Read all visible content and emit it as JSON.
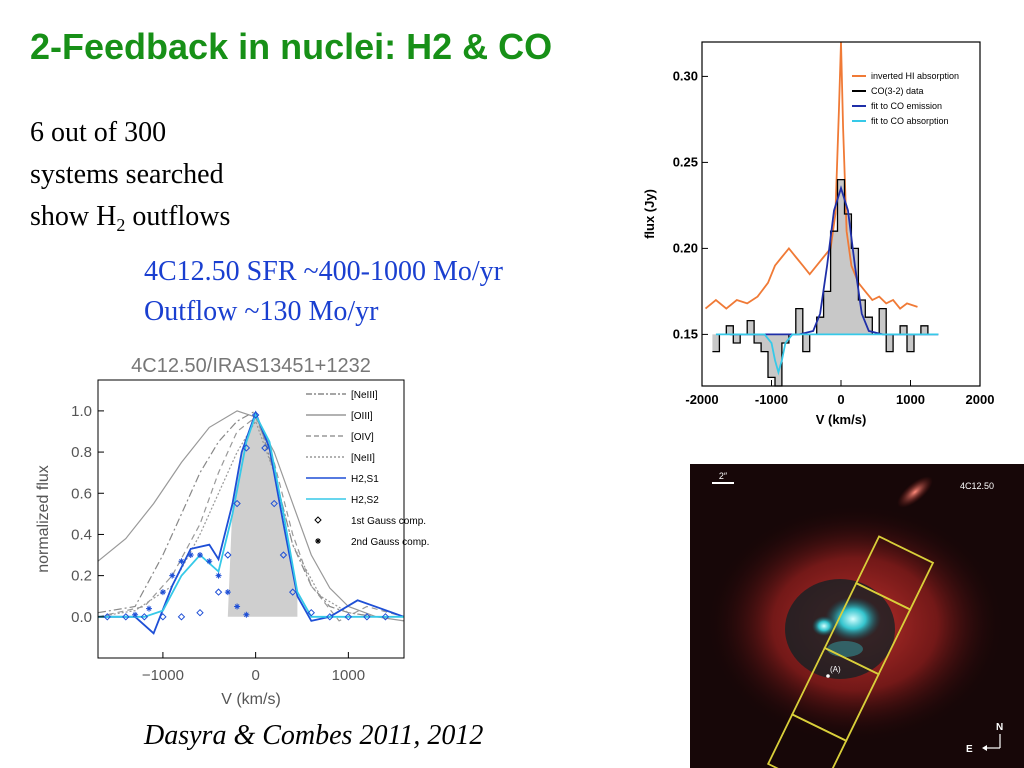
{
  "slide": {
    "title": "2-Feedback in nuclei: H2 & CO",
    "intro_line1": "6 out of 300",
    "intro_line2": "systems searched",
    "intro_line3_a": "show H",
    "intro_line3_sub": "2",
    "intro_line3_b": " outflows",
    "stats_line1": "4C12.50  SFR ~400-1000 Mo/yr",
    "stats_line2": "Outflow ~130 Mo/yr",
    "citation": "Dasyra & Combes 2011, 2012"
  },
  "chart_data": [
    {
      "type": "line",
      "xlabel": "V (km/s)",
      "ylabel": "flux (Jy)",
      "xlim": [
        -2000,
        2000
      ],
      "ylim": [
        0.12,
        0.32
      ],
      "x_ticks": [
        "-2000",
        "-1000",
        "0",
        "1000",
        "2000"
      ],
      "y_ticks": [
        "0.15",
        "0.20",
        "0.25",
        "0.30"
      ],
      "legend_position": "top-right",
      "series": [
        {
          "name": "inverted HI absorption",
          "color": "#f07a36",
          "x": [
            -1950,
            -1800,
            -1650,
            -1500,
            -1350,
            -1200,
            -1050,
            -950,
            -850,
            -750,
            -650,
            -550,
            -450,
            -350,
            -250,
            -150,
            -80,
            -30,
            0,
            30,
            80,
            150,
            250,
            350,
            450,
            550,
            650,
            750,
            850,
            950,
            1100
          ],
          "y": [
            0.165,
            0.17,
            0.165,
            0.17,
            0.168,
            0.172,
            0.18,
            0.19,
            0.195,
            0.2,
            0.195,
            0.19,
            0.185,
            0.19,
            0.195,
            0.2,
            0.22,
            0.28,
            0.32,
            0.27,
            0.21,
            0.19,
            0.18,
            0.175,
            0.17,
            0.172,
            0.168,
            0.17,
            0.165,
            0.168,
            0.166
          ]
        },
        {
          "name": "CO(3-2) data",
          "color": "#000000",
          "x": [
            -1800,
            -1700,
            -1600,
            -1500,
            -1400,
            -1300,
            -1200,
            -1100,
            -1000,
            -900,
            -800,
            -700,
            -600,
            -500,
            -400,
            -300,
            -200,
            -100,
            0,
            100,
            200,
            300,
            400,
            500,
            600,
            700,
            800,
            900,
            1000,
            1100,
            1200,
            1300
          ],
          "y": [
            0.14,
            0.15,
            0.155,
            0.145,
            0.15,
            0.158,
            0.145,
            0.14,
            0.125,
            0.12,
            0.145,
            0.15,
            0.165,
            0.14,
            0.15,
            0.16,
            0.175,
            0.21,
            0.24,
            0.22,
            0.2,
            0.17,
            0.16,
            0.15,
            0.165,
            0.14,
            0.15,
            0.155,
            0.14,
            0.15,
            0.155,
            0.15
          ]
        },
        {
          "name": "fit to CO emission",
          "color": "#1f2fa8",
          "x": [
            -1600,
            -600,
            -400,
            -300,
            -200,
            -100,
            0,
            100,
            200,
            300,
            400,
            600,
            1400
          ],
          "y": [
            0.15,
            0.15,
            0.152,
            0.162,
            0.19,
            0.222,
            0.235,
            0.222,
            0.19,
            0.162,
            0.152,
            0.15,
            0.15
          ]
        },
        {
          "name": "fit to CO absorption",
          "color": "#36c9e8",
          "x": [
            -1800,
            -1100,
            -1000,
            -950,
            -900,
            -850,
            -800,
            -700,
            1400
          ],
          "y": [
            0.15,
            0.15,
            0.145,
            0.135,
            0.128,
            0.135,
            0.145,
            0.15,
            0.15
          ]
        }
      ]
    },
    {
      "type": "line",
      "title": "4C12.50/IRAS13451+1232",
      "xlabel": "V (km/s)",
      "ylabel": "normalized flux",
      "xlim": [
        -1700,
        1600
      ],
      "ylim": [
        -0.2,
        1.15
      ],
      "x_ticks": [
        "−1000",
        "0",
        "1000"
      ],
      "y_ticks": [
        "0.0",
        "0.2",
        "0.4",
        "0.6",
        "0.8",
        "1.0"
      ],
      "legend_position": "top-right",
      "series": [
        {
          "name": "[NeIII]",
          "color": "#888888",
          "style": "dash-dot",
          "x": [
            -1700,
            -1300,
            -1000,
            -800,
            -600,
            -400,
            -200,
            0,
            200,
            400,
            600,
            800,
            1000,
            1300,
            1600
          ],
          "y": [
            0.02,
            0.05,
            0.3,
            0.5,
            0.7,
            0.85,
            0.95,
            1.0,
            0.7,
            0.35,
            0.15,
            0.05,
            0.02,
            0.0,
            0.0
          ]
        },
        {
          "name": "[OIII]",
          "color": "#999999",
          "style": "solid",
          "x": [
            -1700,
            -1400,
            -1100,
            -800,
            -500,
            -200,
            0,
            200,
            400,
            600,
            800,
            1000,
            1300,
            1600
          ],
          "y": [
            0.27,
            0.38,
            0.55,
            0.75,
            0.92,
            1.0,
            0.97,
            0.8,
            0.55,
            0.3,
            0.14,
            0.05,
            0.0,
            -0.02
          ]
        },
        {
          "name": "[OIV]",
          "color": "#999999",
          "style": "dashed",
          "x": [
            -1700,
            -1200,
            -900,
            -600,
            -400,
            -200,
            0,
            200,
            400,
            600,
            900,
            1200,
            1600
          ],
          "y": [
            0.0,
            0.05,
            0.2,
            0.45,
            0.7,
            0.9,
            0.97,
            0.75,
            0.4,
            0.15,
            -0.02,
            0.05,
            0.0
          ]
        },
        {
          "name": "[NeII]",
          "color": "#999999",
          "style": "dotted",
          "x": [
            -1700,
            -1300,
            -900,
            -600,
            -400,
            -200,
            0,
            200,
            400,
            700,
            1000,
            1300,
            1600
          ],
          "y": [
            0.0,
            0.03,
            0.15,
            0.4,
            0.6,
            0.8,
            0.95,
            0.7,
            0.35,
            0.1,
            0.02,
            0.0,
            0.0
          ]
        },
        {
          "name": "H2,S1",
          "color": "#1e4fd6",
          "style": "solid",
          "x": [
            -1700,
            -1300,
            -1100,
            -900,
            -700,
            -500,
            -400,
            -250,
            -150,
            0,
            150,
            300,
            450,
            600,
            800,
            1100,
            1600
          ],
          "y": [
            0.0,
            0.0,
            -0.08,
            0.15,
            0.33,
            0.35,
            0.28,
            0.55,
            0.8,
            0.99,
            0.82,
            0.45,
            0.1,
            -0.02,
            0.0,
            0.08,
            0.0
          ]
        },
        {
          "name": "H2,S2",
          "color": "#36c9e8",
          "style": "solid",
          "x": [
            -1700,
            -1200,
            -1000,
            -800,
            -600,
            -400,
            -250,
            -100,
            0,
            150,
            300,
            450,
            600,
            900,
            1600
          ],
          "y": [
            0.0,
            0.0,
            0.03,
            0.2,
            0.3,
            0.22,
            0.5,
            0.85,
            0.98,
            0.85,
            0.5,
            0.12,
            0.0,
            0.0,
            0.0
          ]
        },
        {
          "name": "1st Gauss comp.",
          "color": "#1e4fd6",
          "style": "diamond-markers",
          "x": [
            -1600,
            -1400,
            -1200,
            -1000,
            -800,
            -600,
            -400,
            -300,
            -200,
            -100,
            0,
            100,
            200,
            300,
            400,
            600,
            800,
            1000,
            1200,
            1400
          ],
          "y": [
            0.0,
            0.0,
            0.0,
            0.0,
            0.0,
            0.02,
            0.12,
            0.3,
            0.55,
            0.82,
            0.98,
            0.82,
            0.55,
            0.3,
            0.12,
            0.02,
            0.0,
            0.0,
            0.0,
            0.0
          ]
        },
        {
          "name": "2nd Gauss comp.",
          "color": "#1e4fd6",
          "style": "star-markers",
          "x": [
            -1300,
            -1150,
            -1000,
            -900,
            -800,
            -700,
            -600,
            -500,
            -400,
            -300,
            -200,
            -100
          ],
          "y": [
            0.01,
            0.04,
            0.12,
            0.2,
            0.27,
            0.3,
            0.3,
            0.27,
            0.2,
            0.12,
            0.05,
            0.01
          ]
        }
      ]
    }
  ],
  "fig_image": {
    "source_label": "4C12.50",
    "scale_label": "2″",
    "marker_label": "(A)",
    "north_label": "N",
    "east_label": "E"
  }
}
